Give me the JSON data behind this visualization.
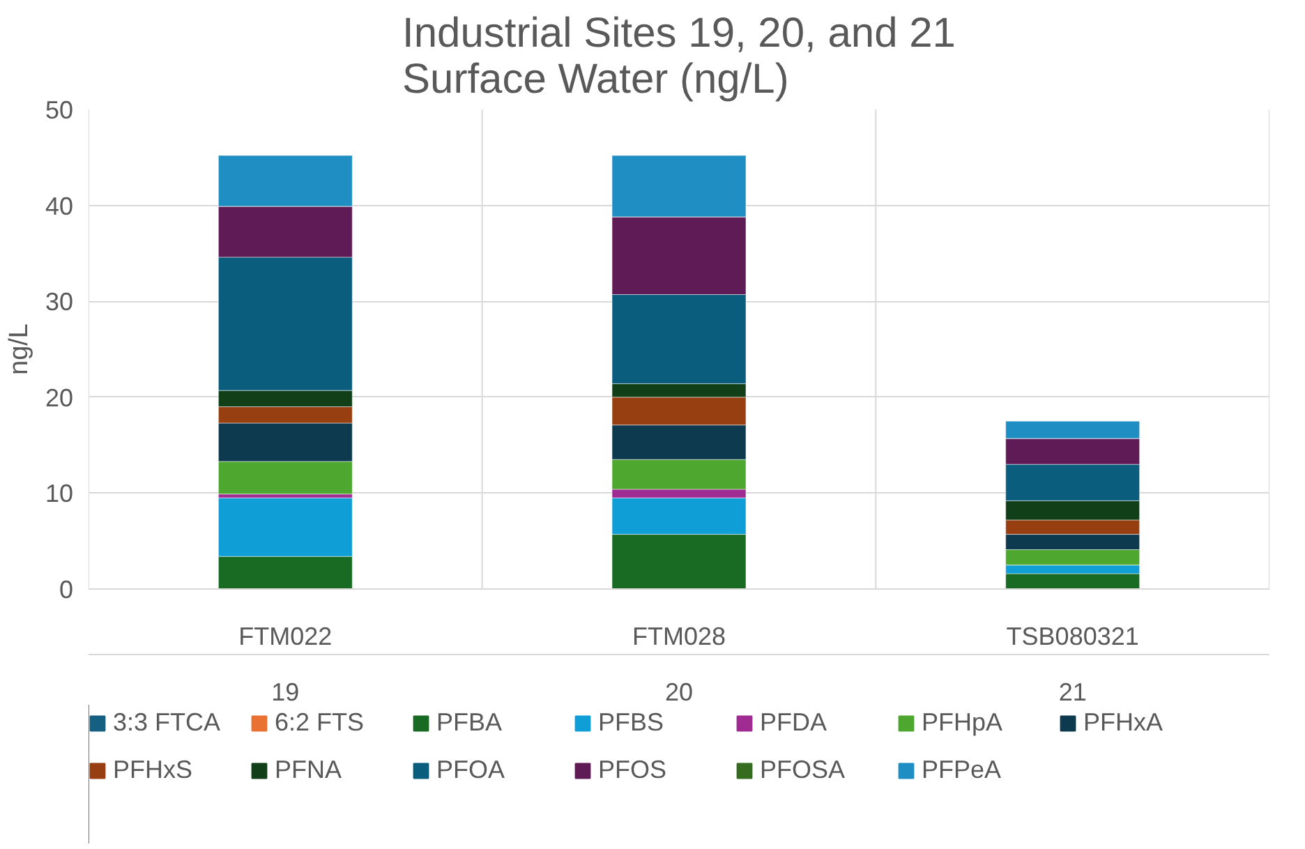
{
  "chart_data": {
    "type": "bar",
    "title": "Industrial Sites 19, 20, and 21\nSurface Water (ng/L)",
    "ylabel": "ng/L",
    "categories": [
      "FTM022",
      "FTM028",
      "TSB080321"
    ],
    "annotations": [
      "19",
      "20",
      "21"
    ],
    "stacked": true,
    "ylim": [
      0,
      50
    ],
    "yticks": [
      0,
      10,
      20,
      30,
      40,
      50
    ],
    "grid": "y",
    "legend": "bottom",
    "series": [
      {
        "name": "3:3 FTCA",
        "color": "#156082",
        "values": [
          0,
          0,
          0
        ]
      },
      {
        "name": "6:2 FTS",
        "color": "#e97132",
        "values": [
          0,
          0,
          0
        ]
      },
      {
        "name": "PFBA",
        "color": "#196b24",
        "values": [
          3.4,
          5.7,
          1.6
        ]
      },
      {
        "name": "PFBS",
        "color": "#0f9ed5",
        "values": [
          6.1,
          3.8,
          0.9
        ]
      },
      {
        "name": "PFDA",
        "color": "#a02b93",
        "values": [
          0.4,
          0.9,
          0
        ]
      },
      {
        "name": "PFHpA",
        "color": "#4ea72e",
        "values": [
          3.4,
          3.1,
          1.6
        ]
      },
      {
        "name": "PFHxA",
        "color": "#0e3a50",
        "values": [
          4.0,
          3.6,
          1.6
        ]
      },
      {
        "name": "PFHxS",
        "color": "#983f11",
        "values": [
          1.7,
          2.9,
          1.5
        ]
      },
      {
        "name": "PFNA",
        "color": "#113f17",
        "values": [
          1.7,
          1.4,
          2.0
        ]
      },
      {
        "name": "PFOA",
        "color": "#0b5d7e",
        "values": [
          13.9,
          9.3,
          3.8
        ]
      },
      {
        "name": "PFOS",
        "color": "#5f1b56",
        "values": [
          5.3,
          8.1,
          2.7
        ]
      },
      {
        "name": "PFOSA",
        "color": "#346d1f",
        "values": [
          0,
          0,
          0
        ]
      },
      {
        "name": "PFPeA",
        "color": "#1f8fc3",
        "values": [
          5.3,
          6.4,
          1.8
        ]
      }
    ]
  }
}
